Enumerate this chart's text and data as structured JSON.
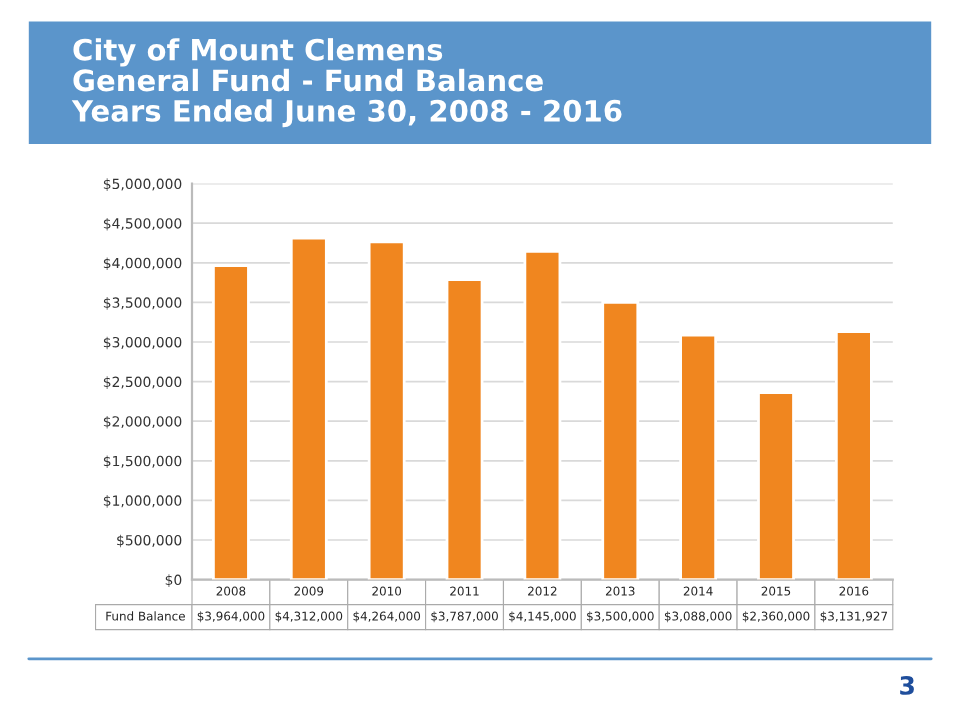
{
  "chart_data": {
    "type": "bar",
    "title": "City of Mount Clemens\nGeneral Fund - Fund Balance\nYears Ended June 30, 2008 - 2016",
    "categories": [
      "2008",
      "2009",
      "2010",
      "2011",
      "2012",
      "2013",
      "2014",
      "2015",
      "2016"
    ],
    "series": [
      {
        "name": "Fund Balance",
        "color": "#f0861f",
        "values": [
          3964000,
          4312000,
          4264000,
          3787000,
          4145000,
          3500000,
          3088000,
          2360000,
          3131927
        ],
        "value_labels": [
          "$3,964,000",
          "$4,312,000",
          "$4,264,000",
          "$3,787,000",
          "$4,145,000",
          "$3,500,000",
          "$3,088,000",
          "$2,360,000",
          "$3,131,927"
        ]
      }
    ],
    "ylim": [
      0,
      5000000
    ],
    "yticks": [
      {
        "value": 0,
        "label": "$0"
      },
      {
        "value": 500000,
        "label": "$500,000"
      },
      {
        "value": 1000000,
        "label": "$1,000,000"
      },
      {
        "value": 1500000,
        "label": "$1,500,000"
      },
      {
        "value": 2000000,
        "label": "$2,000,000"
      },
      {
        "value": 2500000,
        "label": "$2,500,000"
      },
      {
        "value": 3000000,
        "label": "$3,000,000"
      },
      {
        "value": 3500000,
        "label": "$3,500,000"
      },
      {
        "value": 4000000,
        "label": "$4,000,000"
      },
      {
        "value": 4500000,
        "label": "$4,500,000"
      },
      {
        "value": 5000000,
        "label": "$5,000,000"
      }
    ],
    "grid": "y",
    "legend": false,
    "annotations": [
      "3"
    ]
  }
}
